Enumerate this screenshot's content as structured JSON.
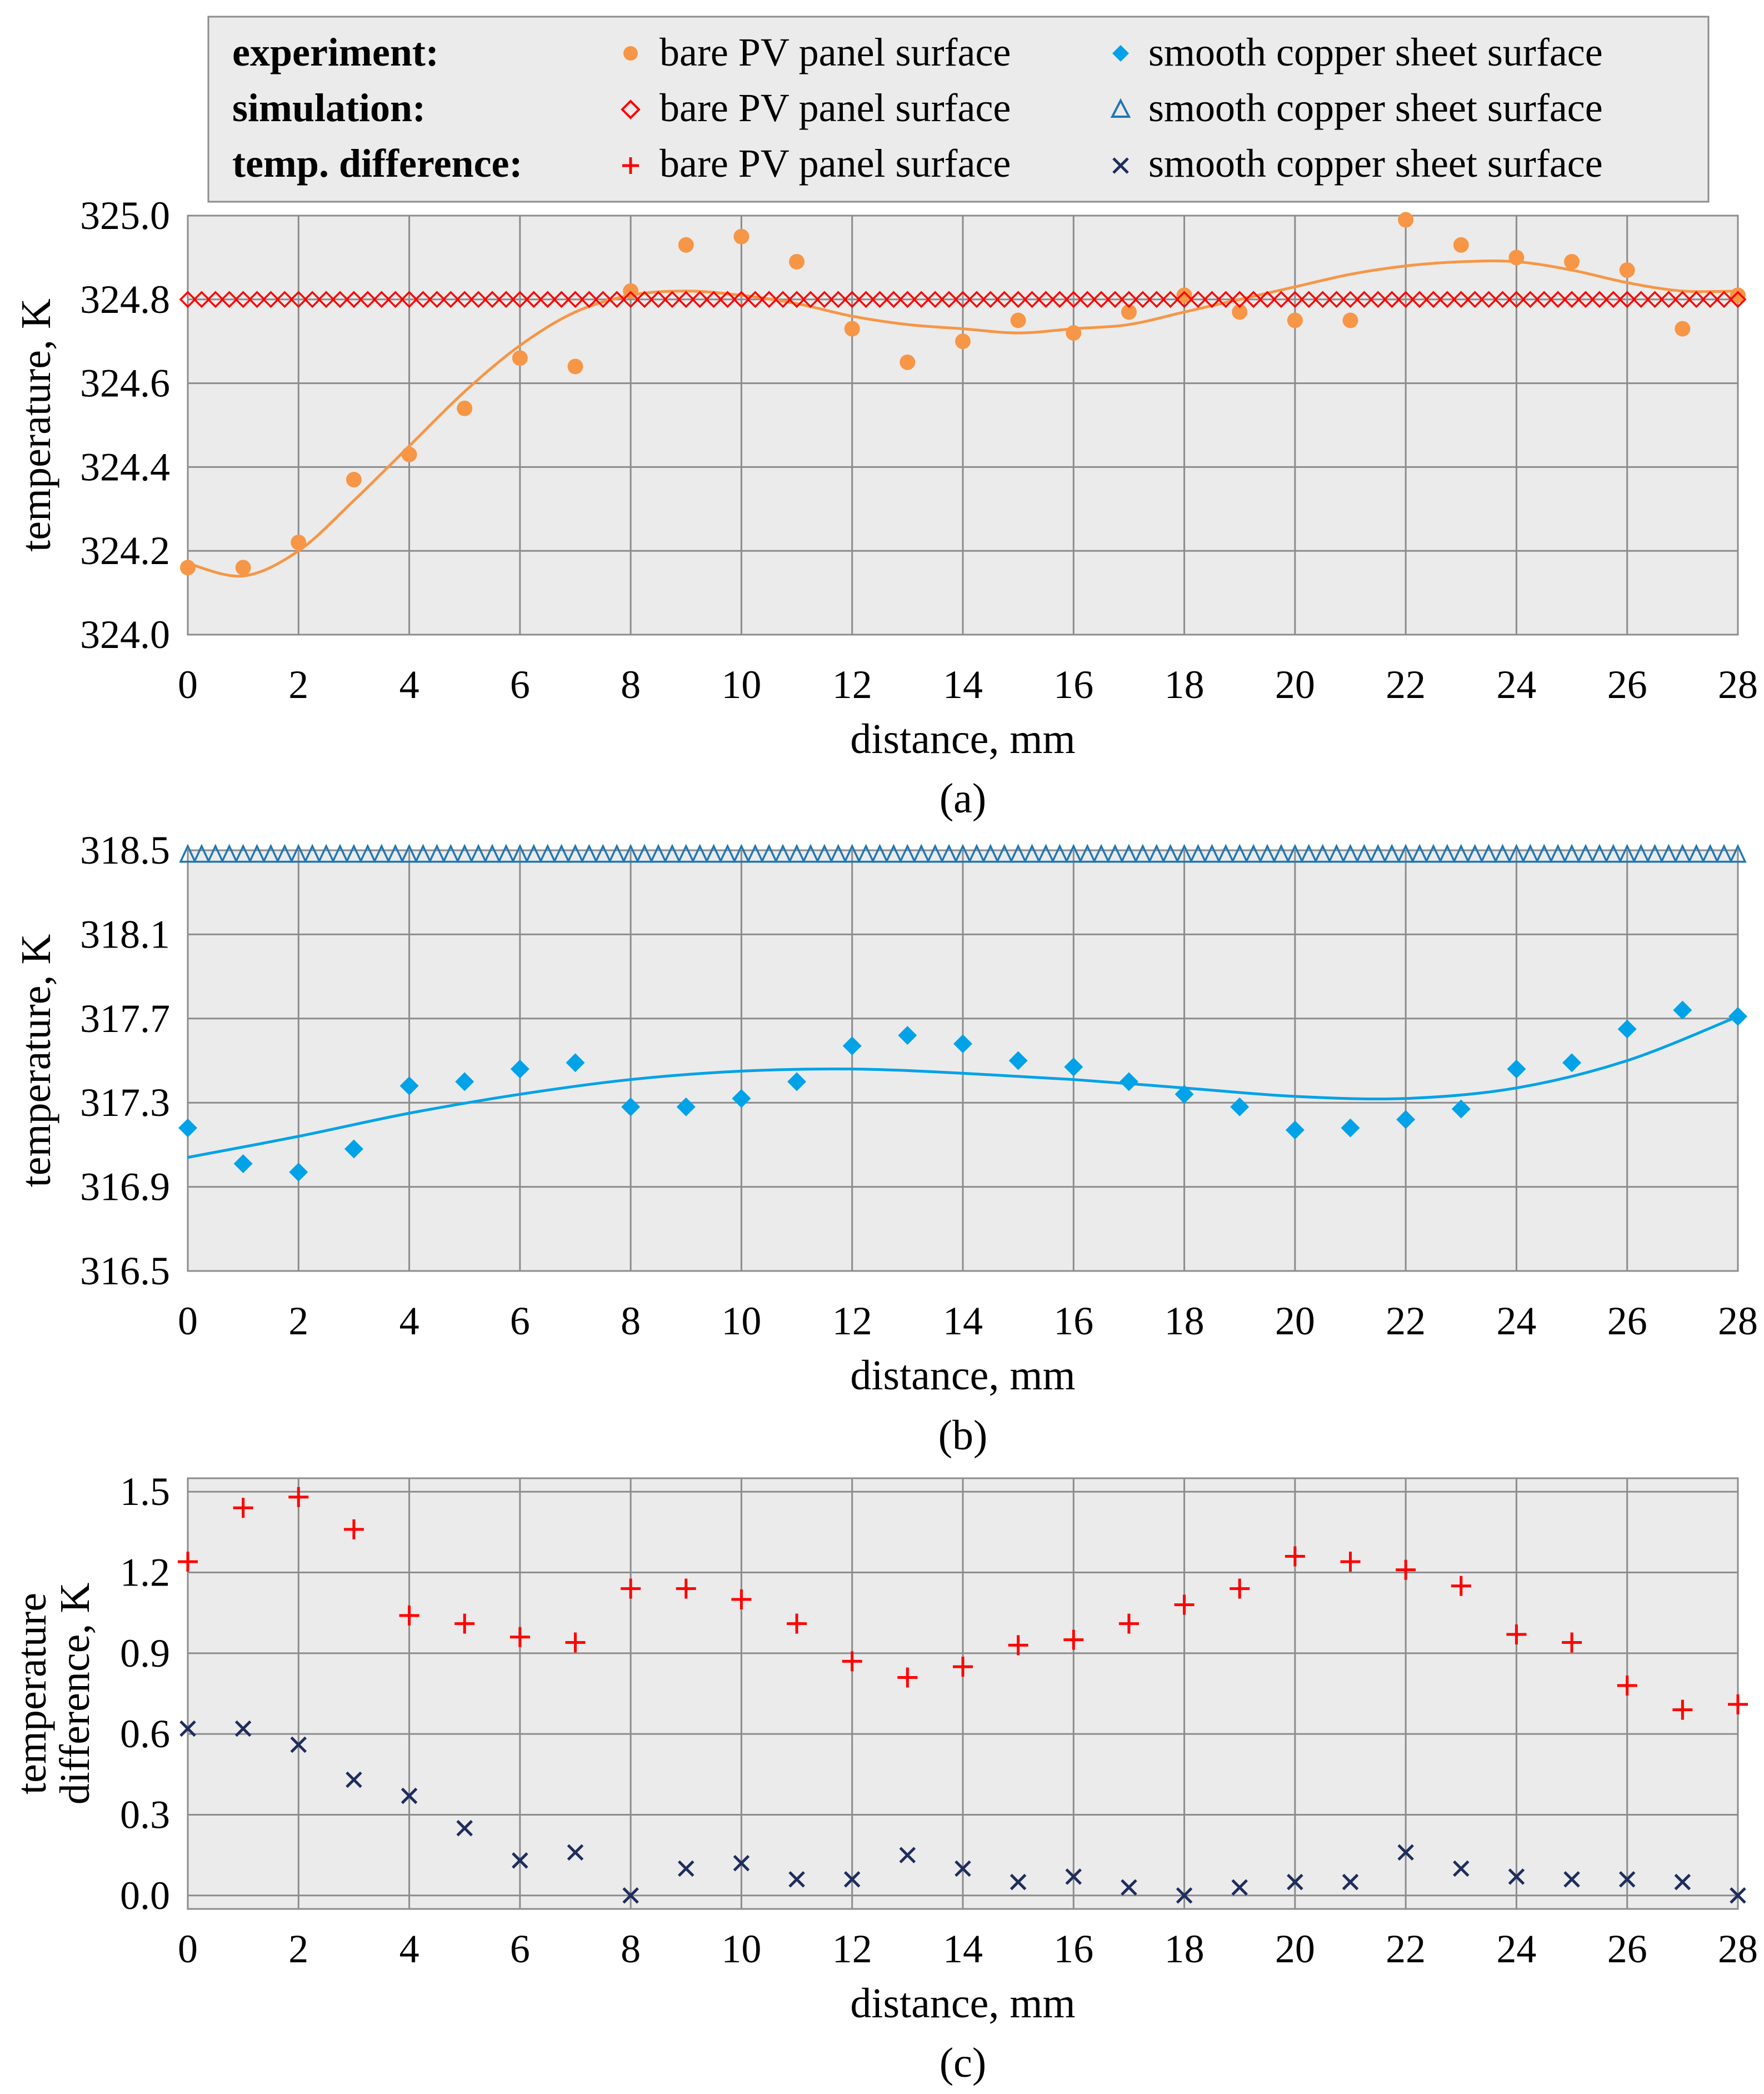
{
  "legend": {
    "rows": [
      {
        "label": "experiment:",
        "bare": "bare PV panel surface",
        "copper": "smooth copper sheet surface"
      },
      {
        "label": "simulation:",
        "bare": "bare PV panel surface",
        "copper": "smooth copper sheet surface"
      },
      {
        "label": "temp.  difference:",
        "bare": "bare PV panel surface",
        "copper": "smooth copper sheet surface"
      }
    ]
  },
  "colors": {
    "orange": "#F79646",
    "red": "#FF0000",
    "cyan": "#00A2E8",
    "blue": "#1F77B4",
    "navy": "#1F2D5C",
    "plot_bg": "#EBEBEB",
    "grid": "#8C8C8C"
  },
  "icons": {
    "exp_bare": "orange-circle-icon",
    "exp_copper": "cyan-diamond-icon",
    "sim_bare": "red-diamond-outline-icon",
    "sim_copper": "blue-triangle-outline-icon",
    "diff_bare": "red-plus-icon",
    "diff_copper": "navy-x-icon"
  },
  "chart_data": [
    {
      "id": "a",
      "type": "scatter",
      "caption": "(a)",
      "xlabel": "distance, mm",
      "ylabel": "temperature, K",
      "xlim": [
        0,
        28
      ],
      "ylim": [
        324.0,
        325.0
      ],
      "xticks": [
        0,
        2,
        4,
        6,
        8,
        10,
        12,
        14,
        16,
        18,
        20,
        22,
        24,
        26,
        28
      ],
      "xtick_labels": [
        "0",
        "2",
        "4",
        "6",
        "8",
        "10",
        "12",
        "14",
        "16",
        "18",
        "20",
        "22",
        "24",
        "26",
        "28"
      ],
      "yticks": [
        324.0,
        324.2,
        324.4,
        324.6,
        324.8,
        325.0
      ],
      "ytick_labels": [
        "324.0",
        "324.2",
        "324.4",
        "324.6",
        "324.8",
        "325.0"
      ],
      "series": [
        {
          "name": "experiment: bare PV panel surface",
          "marker": "circle",
          "color": "#F79646",
          "x": [
            0,
            1,
            2,
            3,
            4,
            5,
            6,
            7,
            8,
            9,
            10,
            11,
            12,
            13,
            14,
            15,
            16,
            17,
            18,
            19,
            20,
            21,
            22,
            23,
            24,
            25,
            26,
            27,
            28
          ],
          "y": [
            324.16,
            324.16,
            324.22,
            324.37,
            324.43,
            324.54,
            324.66,
            324.64,
            324.82,
            324.93,
            324.95,
            324.89,
            324.73,
            324.65,
            324.7,
            324.75,
            324.72,
            324.77,
            324.81,
            324.77,
            324.75,
            324.75,
            324.99,
            324.93,
            324.9,
            324.89,
            324.87,
            324.73,
            324.81
          ]
        },
        {
          "name": "trend: bare PV panel surface",
          "marker": "line",
          "color": "#F79646",
          "x": [
            0,
            1,
            2,
            3,
            4,
            5,
            6,
            7,
            8,
            9,
            10,
            11,
            12,
            13,
            14,
            15,
            16,
            17,
            18,
            19,
            20,
            21,
            22,
            23,
            24,
            25,
            26,
            27,
            28
          ],
          "y": [
            324.17,
            324.14,
            324.2,
            324.32,
            324.45,
            324.58,
            324.69,
            324.77,
            324.81,
            324.82,
            324.81,
            324.79,
            324.76,
            324.74,
            324.73,
            324.72,
            324.73,
            324.74,
            324.77,
            324.8,
            324.83,
            324.86,
            324.88,
            324.89,
            324.89,
            324.87,
            324.84,
            324.82,
            324.82
          ]
        },
        {
          "name": "simulation: bare PV panel surface",
          "marker": "diamond-outline",
          "color": "#FF0000",
          "y_const": 324.8,
          "x_start": 0,
          "x_end": 28,
          "x_step": 0.25
        }
      ]
    },
    {
      "id": "b",
      "type": "scatter",
      "caption": "(b)",
      "xlabel": "distance, mm",
      "ylabel": "temperature, K",
      "xlim": [
        0,
        28
      ],
      "ylim": [
        316.5,
        318.5
      ],
      "xticks": [
        0,
        2,
        4,
        6,
        8,
        10,
        12,
        14,
        16,
        18,
        20,
        22,
        24,
        26,
        28
      ],
      "xtick_labels": [
        "0",
        "2",
        "4",
        "6",
        "8",
        "10",
        "12",
        "14",
        "16",
        "18",
        "20",
        "22",
        "24",
        "26",
        "28"
      ],
      "yticks": [
        316.5,
        316.9,
        317.3,
        317.7,
        318.1,
        318.5
      ],
      "ytick_labels": [
        "316.5",
        "316.9",
        "317.3",
        "317.7",
        "318.1",
        "318.5"
      ],
      "series": [
        {
          "name": "experiment: smooth copper sheet surface",
          "marker": "diamond",
          "color": "#00A2E8",
          "x": [
            0,
            1,
            2,
            3,
            4,
            5,
            6,
            7,
            8,
            9,
            10,
            11,
            12,
            13,
            14,
            15,
            16,
            17,
            18,
            19,
            20,
            21,
            22,
            23,
            24,
            25,
            26,
            27,
            28
          ],
          "y": [
            317.18,
            317.01,
            316.97,
            317.08,
            317.38,
            317.4,
            317.46,
            317.49,
            317.28,
            317.28,
            317.32,
            317.4,
            317.57,
            317.62,
            317.58,
            317.5,
            317.47,
            317.4,
            317.34,
            317.28,
            317.17,
            317.18,
            317.22,
            317.27,
            317.46,
            317.49,
            317.65,
            317.74,
            317.71
          ]
        },
        {
          "name": "trend: smooth copper sheet surface",
          "marker": "line",
          "color": "#00A2E8",
          "x": [
            0,
            2,
            4,
            6,
            8,
            10,
            12,
            14,
            16,
            18,
            20,
            22,
            24,
            26,
            28
          ],
          "y": [
            317.04,
            317.14,
            317.25,
            317.34,
            317.41,
            317.45,
            317.46,
            317.44,
            317.41,
            317.37,
            317.33,
            317.32,
            317.37,
            317.5,
            317.71
          ]
        },
        {
          "name": "simulation: smooth copper sheet surface",
          "marker": "triangle-outline",
          "color": "#1F77B4",
          "y_const": 318.48,
          "x_start": 0,
          "x_end": 28,
          "x_step": 0.25
        }
      ]
    },
    {
      "id": "c",
      "type": "scatter",
      "caption": "(c)",
      "xlabel": "distance, mm",
      "ylabel": [
        "temperature",
        "difference, K"
      ],
      "xlim": [
        0,
        28
      ],
      "ylim": [
        -0.05,
        1.55
      ],
      "xticks": [
        0,
        2,
        4,
        6,
        8,
        10,
        12,
        14,
        16,
        18,
        20,
        22,
        24,
        26,
        28
      ],
      "xtick_labels": [
        "0",
        "2",
        "4",
        "6",
        "8",
        "10",
        "12",
        "14",
        "16",
        "18",
        "20",
        "22",
        "24",
        "26",
        "28"
      ],
      "yticks": [
        0.0,
        0.3,
        0.6,
        0.9,
        1.2,
        1.5
      ],
      "ytick_labels": [
        "0.0",
        "0.3",
        "0.6",
        "0.9",
        "1.2",
        "1.5"
      ],
      "series": [
        {
          "name": "temp. difference: bare PV panel surface",
          "marker": "plus",
          "color": "#FF0000",
          "x": [
            0,
            1,
            2,
            3,
            4,
            5,
            6,
            7,
            8,
            9,
            10,
            11,
            12,
            13,
            14,
            15,
            16,
            17,
            18,
            19,
            20,
            21,
            22,
            23,
            24,
            25,
            26,
            27,
            28
          ],
          "y": [
            1.24,
            1.44,
            1.48,
            1.36,
            1.04,
            1.01,
            0.96,
            0.94,
            1.14,
            1.14,
            1.1,
            1.01,
            0.87,
            0.81,
            0.85,
            0.93,
            0.95,
            1.01,
            1.08,
            1.14,
            1.26,
            1.24,
            1.21,
            1.15,
            0.97,
            0.94,
            0.78,
            0.69,
            0.71
          ]
        },
        {
          "name": "temp. difference: smooth copper sheet surface",
          "marker": "x",
          "color": "#1F2D5C",
          "x": [
            0,
            1,
            2,
            3,
            4,
            5,
            6,
            7,
            8,
            9,
            10,
            11,
            12,
            13,
            14,
            15,
            16,
            17,
            18,
            19,
            20,
            21,
            22,
            23,
            24,
            25,
            26,
            27,
            28
          ],
          "y": [
            0.62,
            0.62,
            0.56,
            0.43,
            0.37,
            0.25,
            0.13,
            0.16,
            0.0,
            0.1,
            0.12,
            0.06,
            0.06,
            0.15,
            0.1,
            0.05,
            0.07,
            0.03,
            0.0,
            0.03,
            0.05,
            0.05,
            0.16,
            0.1,
            0.07,
            0.06,
            0.06,
            0.05,
            0.0
          ]
        }
      ]
    }
  ]
}
